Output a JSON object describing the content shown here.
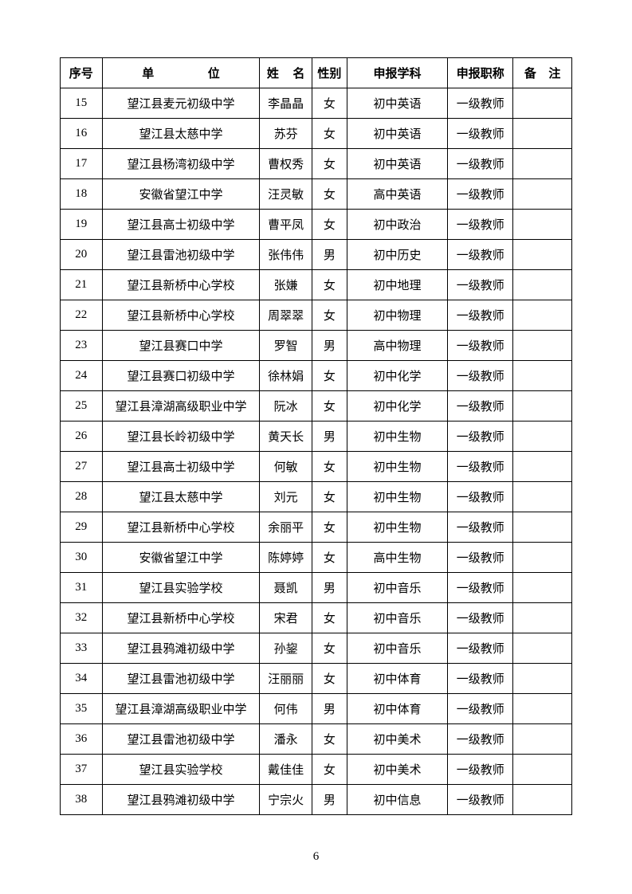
{
  "headers": {
    "seq": "序号",
    "unit_left": "单",
    "unit_right": "位",
    "name_left": "姓",
    "name_right": "名",
    "gender": "性别",
    "subject": "申报学科",
    "title": "申报职称",
    "note_left": "备",
    "note_right": "注"
  },
  "rows": [
    {
      "seq": "15",
      "unit": "望江县麦元初级中学",
      "name": "李晶晶",
      "gender": "女",
      "subject": "初中英语",
      "title": "一级教师",
      "note": ""
    },
    {
      "seq": "16",
      "unit": "望江县太慈中学",
      "name": "苏芬",
      "gender": "女",
      "subject": "初中英语",
      "title": "一级教师",
      "note": ""
    },
    {
      "seq": "17",
      "unit": "望江县杨湾初级中学",
      "name": "曹权秀",
      "gender": "女",
      "subject": "初中英语",
      "title": "一级教师",
      "note": ""
    },
    {
      "seq": "18",
      "unit": "安徽省望江中学",
      "name": "汪灵敏",
      "gender": "女",
      "subject": "高中英语",
      "title": "一级教师",
      "note": ""
    },
    {
      "seq": "19",
      "unit": "望江县高士初级中学",
      "name": "曹平凤",
      "gender": "女",
      "subject": "初中政治",
      "title": "一级教师",
      "note": ""
    },
    {
      "seq": "20",
      "unit": "望江县雷池初级中学",
      "name": "张伟伟",
      "gender": "男",
      "subject": "初中历史",
      "title": "一级教师",
      "note": ""
    },
    {
      "seq": "21",
      "unit": "望江县新桥中心学校",
      "name": "张嫌",
      "gender": "女",
      "subject": "初中地理",
      "title": "一级教师",
      "note": ""
    },
    {
      "seq": "22",
      "unit": "望江县新桥中心学校",
      "name": "周翠翠",
      "gender": "女",
      "subject": "初中物理",
      "title": "一级教师",
      "note": ""
    },
    {
      "seq": "23",
      "unit": "望江县赛口中学",
      "name": "罗智",
      "gender": "男",
      "subject": "高中物理",
      "title": "一级教师",
      "note": ""
    },
    {
      "seq": "24",
      "unit": "望江县赛口初级中学",
      "name": "徐林娟",
      "gender": "女",
      "subject": "初中化学",
      "title": "一级教师",
      "note": ""
    },
    {
      "seq": "25",
      "unit": "望江县漳湖高级职业中学",
      "name": "阮冰",
      "gender": "女",
      "subject": "初中化学",
      "title": "一级教师",
      "note": ""
    },
    {
      "seq": "26",
      "unit": "望江县长岭初级中学",
      "name": "黄天长",
      "gender": "男",
      "subject": "初中生物",
      "title": "一级教师",
      "note": ""
    },
    {
      "seq": "27",
      "unit": "望江县高士初级中学",
      "name": "何敏",
      "gender": "女",
      "subject": "初中生物",
      "title": "一级教师",
      "note": ""
    },
    {
      "seq": "28",
      "unit": "望江县太慈中学",
      "name": "刘元",
      "gender": "女",
      "subject": "初中生物",
      "title": "一级教师",
      "note": ""
    },
    {
      "seq": "29",
      "unit": "望江县新桥中心学校",
      "name": "余丽平",
      "gender": "女",
      "subject": "初中生物",
      "title": "一级教师",
      "note": ""
    },
    {
      "seq": "30",
      "unit": "安徽省望江中学",
      "name": "陈婷婷",
      "gender": "女",
      "subject": "高中生物",
      "title": "一级教师",
      "note": ""
    },
    {
      "seq": "31",
      "unit": "望江县实验学校",
      "name": "聂凯",
      "gender": "男",
      "subject": "初中音乐",
      "title": "一级教师",
      "note": ""
    },
    {
      "seq": "32",
      "unit": "望江县新桥中心学校",
      "name": "宋君",
      "gender": "女",
      "subject": "初中音乐",
      "title": "一级教师",
      "note": ""
    },
    {
      "seq": "33",
      "unit": "望江县鸦滩初级中学",
      "name": "孙鋆",
      "gender": "女",
      "subject": "初中音乐",
      "title": "一级教师",
      "note": ""
    },
    {
      "seq": "34",
      "unit": "望江县雷池初级中学",
      "name": "汪丽丽",
      "gender": "女",
      "subject": "初中体育",
      "title": "一级教师",
      "note": ""
    },
    {
      "seq": "35",
      "unit": "望江县漳湖高级职业中学",
      "name": "何伟",
      "gender": "男",
      "subject": "初中体育",
      "title": "一级教师",
      "note": ""
    },
    {
      "seq": "36",
      "unit": "望江县雷池初级中学",
      "name": "潘永",
      "gender": "女",
      "subject": "初中美术",
      "title": "一级教师",
      "note": ""
    },
    {
      "seq": "37",
      "unit": "望江县实验学校",
      "name": "戴佳佳",
      "gender": "女",
      "subject": "初中美术",
      "title": "一级教师",
      "note": ""
    },
    {
      "seq": "38",
      "unit": "望江县鸦滩初级中学",
      "name": "宁宗火",
      "gender": "男",
      "subject": "初中信息",
      "title": "一级教师",
      "note": ""
    }
  ],
  "page_number": "6"
}
